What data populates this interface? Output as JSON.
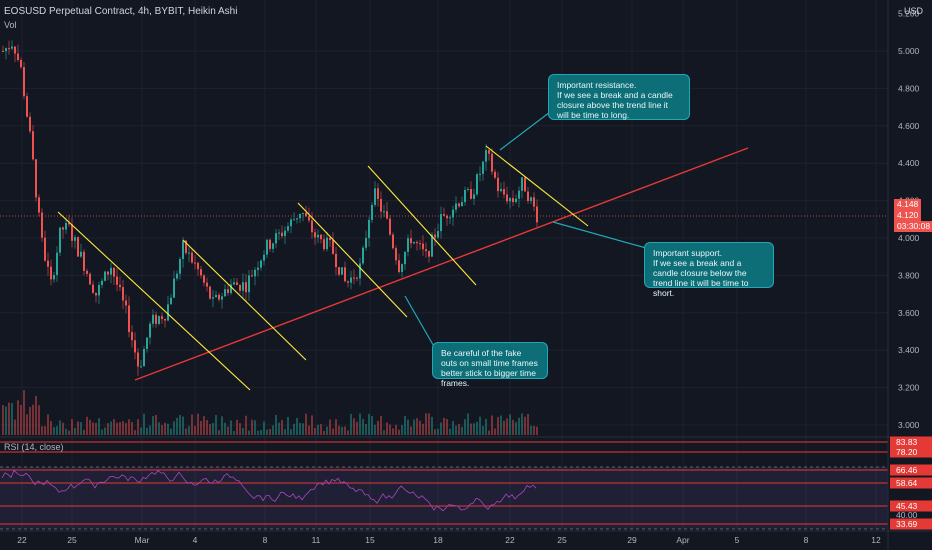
{
  "header": {
    "title": "EOSUSD Perpetual Contract, 4h, BYBIT, Heikin Ashi",
    "vol_label": "Vol",
    "rsi_label": "RSI (14, close)",
    "currency": "USD"
  },
  "price_axis": {
    "ticks": [
      "5.000",
      "4.800",
      "4.600",
      "4.400",
      "4.200",
      "4.000",
      "3.800",
      "3.600",
      "3.400",
      "3.200",
      "3.000"
    ],
    "top_tick": "5.200"
  },
  "price_tags": {
    "high": "4.148",
    "current": "4.120",
    "countdown": "03:30:08"
  },
  "rsi_axis": {
    "ticks": [
      "83.83",
      "78.20",
      "66.46",
      "58.64",
      "45.43",
      "40.00",
      "33.69"
    ]
  },
  "time_axis": {
    "ticks": [
      "22",
      "25",
      "Mar",
      "4",
      "8",
      "11",
      "15",
      "18",
      "22",
      "25",
      "29",
      "Apr",
      "5",
      "8",
      "12"
    ]
  },
  "annotations": {
    "resistance": "Important resistance.\nIf we see a break and a candle closure above the trend line it will be time to long.",
    "support": "Important support.\nIf we see a break and a candle closure below the trend line it will be time to short.",
    "fakeouts": "Be careful of the fake outs on small time frames better stick to bigger time frames."
  },
  "colors": {
    "up": "#26a69a",
    "down": "#ef5350",
    "trend": "#e53935",
    "resistance_line": "#ffeb3b",
    "note_bg": "#0e6e78"
  }
}
